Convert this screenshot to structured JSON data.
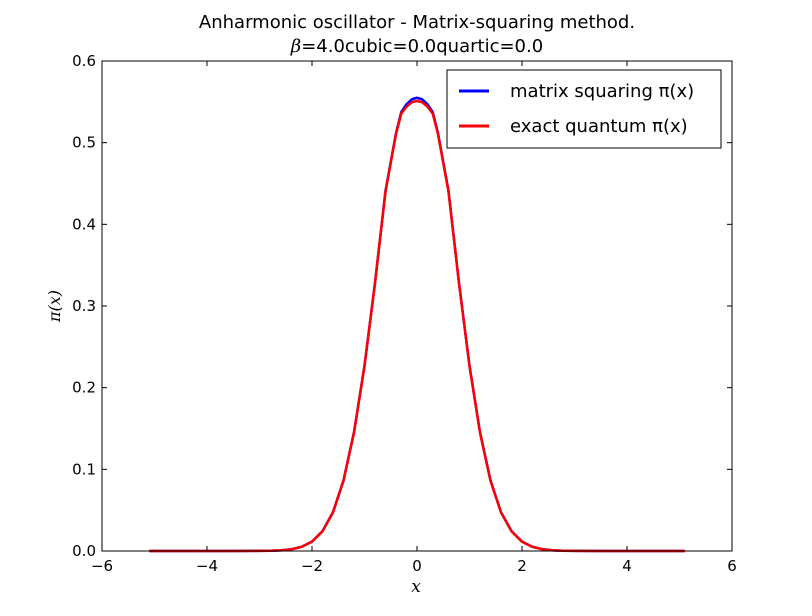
{
  "chart_data": {
    "type": "line",
    "title": "Anharmonic oscillator - Matrix-squaring method.",
    "subtitle_parts": {
      "beta_symbol": "β",
      "rest": "=4.0cubic=0.0quartic=0.0"
    },
    "xlabel": "x",
    "ylabel": "π(x)",
    "xlim": [
      -6,
      6
    ],
    "ylim": [
      0,
      0.6
    ],
    "xticks": [
      -6,
      -4,
      -2,
      0,
      2,
      4,
      6
    ],
    "xtick_labels": [
      "−6",
      "−4",
      "−2",
      "0",
      "2",
      "4",
      "6"
    ],
    "yticks": [
      0.0,
      0.1,
      0.2,
      0.3,
      0.4,
      0.5,
      0.6
    ],
    "ytick_labels": [
      "0.0",
      "0.1",
      "0.2",
      "0.3",
      "0.4",
      "0.5",
      "0.6"
    ],
    "grid": false,
    "legend_position": "top-right",
    "series": [
      {
        "name": "matrix squaring π(x)",
        "color": "#0000ff",
        "x": [
          -5.1,
          -4.5,
          -4.0,
          -3.5,
          -3.0,
          -2.8,
          -2.6,
          -2.4,
          -2.2,
          -2.0,
          -1.8,
          -1.6,
          -1.4,
          -1.2,
          -1.0,
          -0.8,
          -0.6,
          -0.4,
          -0.3,
          -0.2,
          -0.1,
          0.0,
          0.1,
          0.2,
          0.3,
          0.4,
          0.6,
          0.8,
          1.0,
          1.2,
          1.4,
          1.6,
          1.8,
          2.0,
          2.2,
          2.4,
          2.6,
          2.8,
          3.0,
          3.5,
          4.0,
          4.5,
          5.1
        ],
        "y": [
          0.0,
          0.0,
          0.0,
          0.0,
          0.0001,
          0.0003,
          0.0008,
          0.0021,
          0.0051,
          0.0115,
          0.0243,
          0.0476,
          0.0864,
          0.1454,
          0.227,
          0.3283,
          0.4411,
          0.5116,
          0.5375,
          0.547,
          0.553,
          0.555,
          0.553,
          0.547,
          0.5375,
          0.5116,
          0.4411,
          0.3283,
          0.227,
          0.1454,
          0.0864,
          0.0476,
          0.0243,
          0.0115,
          0.0051,
          0.0021,
          0.0008,
          0.0003,
          0.0001,
          0.0,
          0.0,
          0.0,
          0.0
        ]
      },
      {
        "name": "exact quantum π(x)",
        "color": "#ff0000",
        "x": [
          -5.1,
          -4.5,
          -4.0,
          -3.5,
          -3.0,
          -2.8,
          -2.6,
          -2.4,
          -2.2,
          -2.0,
          -1.8,
          -1.6,
          -1.4,
          -1.2,
          -1.0,
          -0.8,
          -0.6,
          -0.4,
          -0.3,
          -0.2,
          -0.1,
          0.0,
          0.1,
          0.2,
          0.3,
          0.4,
          0.6,
          0.8,
          1.0,
          1.2,
          1.4,
          1.6,
          1.8,
          2.0,
          2.2,
          2.4,
          2.6,
          2.8,
          3.0,
          3.5,
          4.0,
          4.5,
          5.1
        ],
        "y": [
          0.0,
          0.0,
          0.0,
          0.0,
          0.0001,
          0.0003,
          0.0008,
          0.002,
          0.005,
          0.0114,
          0.0241,
          0.0473,
          0.086,
          0.1449,
          0.2265,
          0.3278,
          0.44,
          0.5105,
          0.5355,
          0.544,
          0.5495,
          0.551,
          0.5495,
          0.544,
          0.5355,
          0.5105,
          0.44,
          0.3278,
          0.2265,
          0.1449,
          0.086,
          0.0473,
          0.0241,
          0.0114,
          0.005,
          0.002,
          0.0008,
          0.0003,
          0.0001,
          0.0,
          0.0,
          0.0,
          0.0
        ]
      }
    ]
  }
}
